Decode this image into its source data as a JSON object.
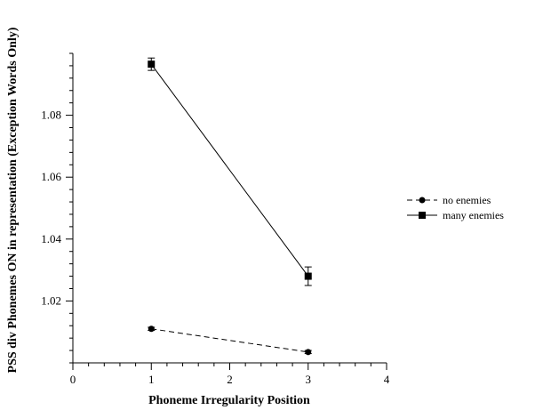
{
  "chart_data": {
    "type": "line",
    "title": "",
    "xlabel": "Phoneme Irregularity Position",
    "ylabel": "PSS div Phonemes ON in representation (Exception Words Only)",
    "xlim": [
      0,
      4
    ],
    "ylim": [
      1.0,
      1.1
    ],
    "x_ticks": [
      0,
      1,
      2,
      3,
      4
    ],
    "x_tick_labels": [
      "0",
      "1",
      "2",
      "3",
      "4"
    ],
    "y_ticks": [
      1.02,
      1.04,
      1.06,
      1.08
    ],
    "y_tick_labels": [
      "1.02",
      "1.04",
      "1.06",
      "1.08"
    ],
    "grid": false,
    "legend_position": "right",
    "series": [
      {
        "name": "no enemies",
        "marker": "circle",
        "line_style": "dashed",
        "color": "#000000",
        "x": [
          1,
          3
        ],
        "y": [
          1.011,
          1.0035
        ],
        "error": [
          0.0005,
          0.0005
        ]
      },
      {
        "name": "many enemies",
        "marker": "square",
        "line_style": "solid",
        "color": "#000000",
        "x": [
          1,
          3
        ],
        "y": [
          1.0965,
          1.028
        ],
        "error": [
          0.002,
          0.003
        ]
      }
    ]
  }
}
